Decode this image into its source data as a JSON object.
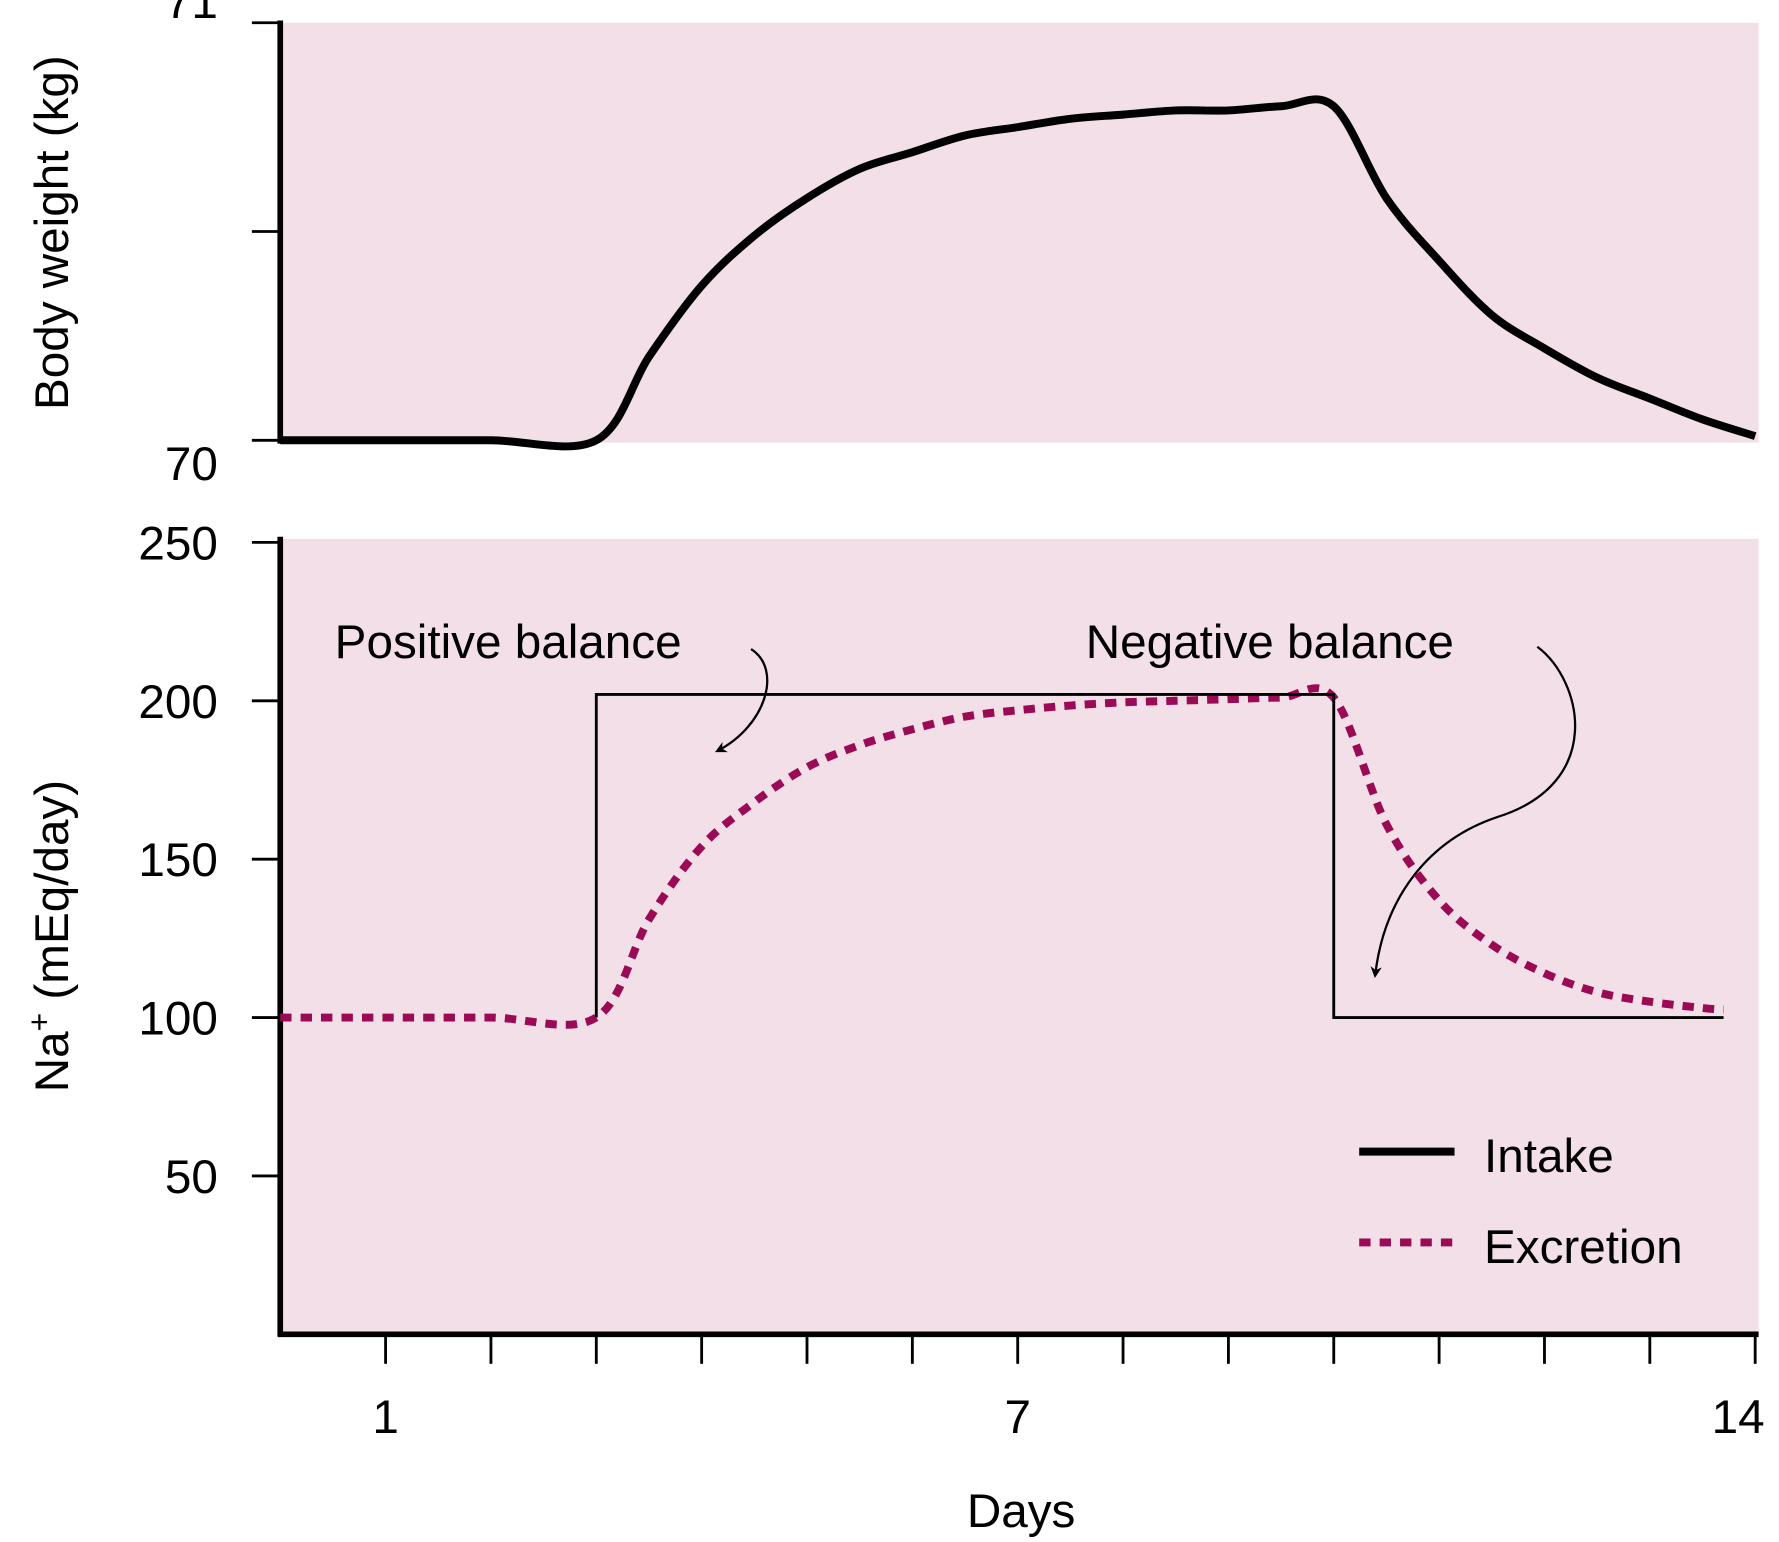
{
  "colors": {
    "panel_background": "#f2dfe7",
    "intake": "#000000",
    "excretion": "#9b0a55"
  },
  "chart_data": [
    {
      "type": "line",
      "ylabel": "Body weight (kg)",
      "ylim": [
        70,
        71
      ],
      "xlim": [
        0,
        14
      ],
      "yticks": [
        70,
        70.5,
        71
      ],
      "ytick_labels": [
        "70",
        "",
        "71"
      ],
      "grid": false,
      "series": [
        {
          "x": [
            0,
            1,
            2,
            3,
            3.5,
            4,
            4.5,
            5,
            5.5,
            6,
            6.5,
            7,
            7.5,
            8,
            8.5,
            9,
            9.5,
            10,
            10.5,
            11,
            11.5,
            12,
            12.5,
            13,
            13.5,
            14
          ],
          "y": [
            70,
            70,
            70,
            70,
            70.2,
            70.37,
            70.49,
            70.58,
            70.65,
            70.69,
            70.73,
            70.75,
            70.77,
            70.78,
            70.79,
            70.79,
            70.8,
            70.8,
            70.58,
            70.43,
            70.3,
            70.22,
            70.15,
            70.1,
            70.05,
            70.01
          ]
        }
      ]
    },
    {
      "type": "line",
      "ylabel": "Na+ (mEq/day)",
      "ylabel_main": "Na",
      "ylabel_sup": "+",
      "ylabel_rest": " (mEq/day)",
      "xlabel": "Days",
      "ylim": [
        0,
        250
      ],
      "xlim": [
        0,
        14
      ],
      "yticks": [
        50,
        100,
        150,
        200,
        250
      ],
      "ytick_labels": [
        "50",
        "100",
        "150",
        "200",
        "250"
      ],
      "xticks": [
        1,
        2,
        3,
        4,
        5,
        6,
        7,
        8,
        9,
        10,
        11,
        12,
        13,
        14
      ],
      "xtick_labels": [
        "1",
        "",
        "",
        "",
        "",
        "",
        "7",
        "",
        "",
        "",
        "",
        "",
        "",
        "14"
      ],
      "grid": false,
      "legend_position": "bottom-right",
      "series": [
        {
          "name": "Intake",
          "style": "solid",
          "x": [
            3,
            3,
            10,
            10,
            13.7
          ],
          "y": [
            100,
            202,
            202,
            100,
            100
          ]
        },
        {
          "name": "Excretion",
          "style": "dotted",
          "x": [
            0,
            1,
            2,
            3,
            3.5,
            4,
            4.5,
            5,
            5.5,
            6,
            6.5,
            7,
            7.5,
            8,
            8.5,
            9,
            9.5,
            10,
            10.5,
            11,
            11.5,
            12,
            12.5,
            13,
            13.5,
            13.7
          ],
          "y": [
            100,
            100,
            100,
            100,
            131,
            154,
            168,
            179,
            186,
            191,
            195,
            197,
            198.5,
            199.5,
            200,
            200.5,
            201,
            201,
            161,
            137,
            123,
            114,
            108,
            105,
            103,
            102.5
          ]
        }
      ],
      "annotations": [
        {
          "text": "Positive balance"
        },
        {
          "text": "Negative balance"
        }
      ]
    }
  ]
}
